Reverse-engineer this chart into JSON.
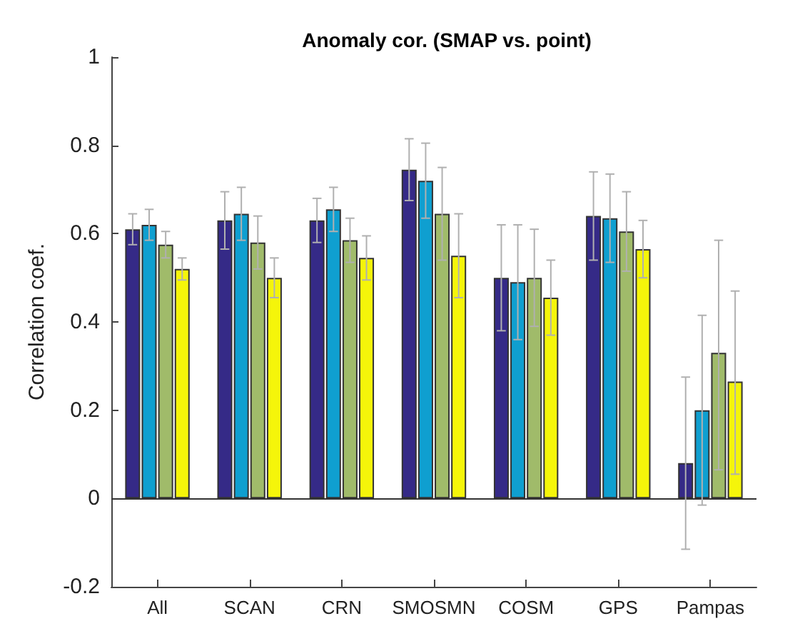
{
  "chart_data": {
    "type": "bar",
    "title": "Anomaly cor. (SMAP vs. point)",
    "ylabel": "Correlation coef.",
    "categories": [
      "All",
      "SCAN",
      "CRN",
      "SMOSMN",
      "COSM",
      "GPS",
      "Pampas"
    ],
    "series": [
      {
        "color": "#352a87",
        "values": [
          0.61,
          0.63,
          0.63,
          0.745,
          0.5,
          0.64,
          0.08
        ],
        "errors": [
          0.035,
          0.065,
          0.05,
          0.07,
          0.12,
          0.1,
          [
            -0.115,
            0.275
          ]
        ]
      },
      {
        "color": "#0f9fd0",
        "values": [
          0.62,
          0.645,
          0.655,
          0.72,
          0.49,
          0.635,
          0.2
        ],
        "errors": [
          0.035,
          0.06,
          0.05,
          0.085,
          0.13,
          0.1,
          [
            -0.015,
            0.415
          ]
        ]
      },
      {
        "color": "#a0bb6a",
        "values": [
          0.575,
          0.58,
          0.585,
          0.645,
          0.5,
          0.605,
          0.33
        ],
        "errors": [
          0.03,
          0.06,
          0.05,
          0.105,
          0.11,
          0.09,
          [
            0.065,
            0.585
          ]
        ]
      },
      {
        "color": "#f5f50a",
        "values": [
          0.52,
          0.5,
          0.545,
          0.55,
          0.455,
          0.565,
          0.265
        ],
        "errors": [
          0.025,
          0.045,
          0.05,
          0.095,
          0.085,
          0.065,
          [
            0.055,
            0.47
          ]
        ]
      }
    ],
    "ylim": [
      -0.2,
      1
    ],
    "yticks": [
      -0.2,
      0,
      0.2,
      0.4,
      0.6,
      0.8,
      1
    ],
    "ref_lines": [
      {
        "axis": "y",
        "value": 0,
        "color": "#333333"
      }
    ],
    "grid": false
  }
}
